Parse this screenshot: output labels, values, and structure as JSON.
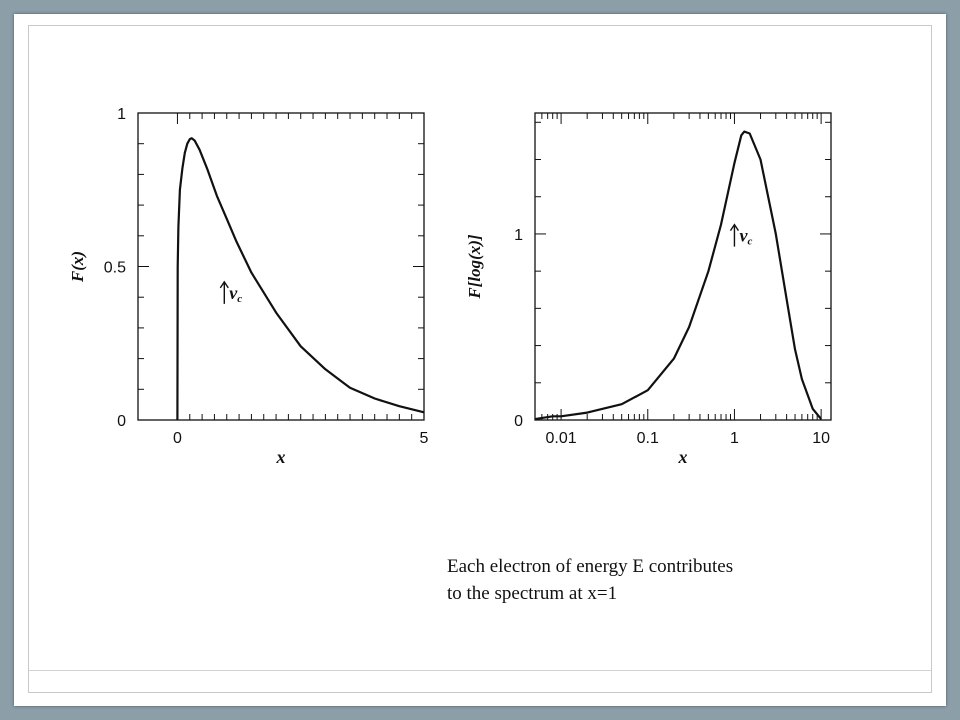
{
  "colors": {
    "background": "#8c9ea8",
    "slide": "#ffffff",
    "ink": "#111111"
  },
  "caption": {
    "line1": "Each electron of energy E contributes",
    "line2": "to the spectrum at x=1"
  },
  "chart_data": [
    {
      "type": "line",
      "xlabel": "x",
      "ylabel": "F(x)",
      "x_scale": "linear",
      "xlim": [
        -0.8,
        5
      ],
      "ylim": [
        0,
        1
      ],
      "x_tick_labels": [
        {
          "v": 0,
          "t": "0"
        },
        {
          "v": 5,
          "t": "5"
        }
      ],
      "y_tick_labels": [
        {
          "v": 0,
          "t": "0"
        },
        {
          "v": 0.5,
          "t": "0.5"
        },
        {
          "v": 1,
          "t": "1"
        }
      ],
      "x_minor_ticks": [
        0.25,
        0.5,
        0.75,
        1,
        1.25,
        1.5,
        1.75,
        2,
        2.25,
        2.5,
        2.75,
        3,
        3.25,
        3.5,
        3.75,
        4,
        4.25,
        4.5,
        4.75
      ],
      "y_minor_ticks": [
        0.1,
        0.2,
        0.3,
        0.4,
        0.6,
        0.7,
        0.8,
        0.9
      ],
      "grid": false,
      "annotation": {
        "text": "νc",
        "x": 0.95,
        "y": 0.45
      },
      "series": [
        {
          "x": [
            0,
            0.005,
            0.02,
            0.05,
            0.1,
            0.15,
            0.2,
            0.25,
            0.29,
            0.35,
            0.45,
            0.6,
            0.8,
            1.0,
            1.2,
            1.5,
            2.0,
            2.5,
            3.0,
            3.5,
            4.0,
            4.5,
            5.0
          ],
          "y": [
            0,
            0.5,
            0.63,
            0.75,
            0.82,
            0.87,
            0.9,
            0.915,
            0.918,
            0.91,
            0.88,
            0.82,
            0.73,
            0.655,
            0.58,
            0.48,
            0.35,
            0.24,
            0.165,
            0.105,
            0.07,
            0.045,
            0.025
          ]
        }
      ]
    },
    {
      "type": "line",
      "xlabel": "x",
      "ylabel": "F[log(x)]",
      "x_scale": "log",
      "xlim": [
        0.005,
        13
      ],
      "ylim": [
        0,
        1.65
      ],
      "x_tick_labels": [
        {
          "v": 0.01,
          "t": "0.01"
        },
        {
          "v": 0.1,
          "t": "0.1"
        },
        {
          "v": 1,
          "t": "1"
        },
        {
          "v": 10,
          "t": "10"
        }
      ],
      "y_tick_labels": [
        {
          "v": 0,
          "t": "0"
        },
        {
          "v": 1,
          "t": "1"
        }
      ],
      "y_minor_ticks": [
        0.2,
        0.4,
        0.6,
        0.8,
        1.2,
        1.4,
        1.6
      ],
      "grid": false,
      "annotation": {
        "text": "νc",
        "x": 1.0,
        "y": 1.05
      },
      "series": [
        {
          "x": [
            0.005,
            0.008,
            0.01,
            0.02,
            0.05,
            0.1,
            0.2,
            0.3,
            0.5,
            0.7,
            1.0,
            1.2,
            1.3,
            1.5,
            2.0,
            3.0,
            4.0,
            5.0,
            6.0,
            8.0,
            10.0
          ],
          "y": [
            0.005,
            0.02,
            0.02,
            0.04,
            0.085,
            0.16,
            0.33,
            0.5,
            0.8,
            1.05,
            1.38,
            1.53,
            1.55,
            1.54,
            1.4,
            1.0,
            0.65,
            0.38,
            0.22,
            0.06,
            0.005
          ]
        }
      ]
    }
  ]
}
